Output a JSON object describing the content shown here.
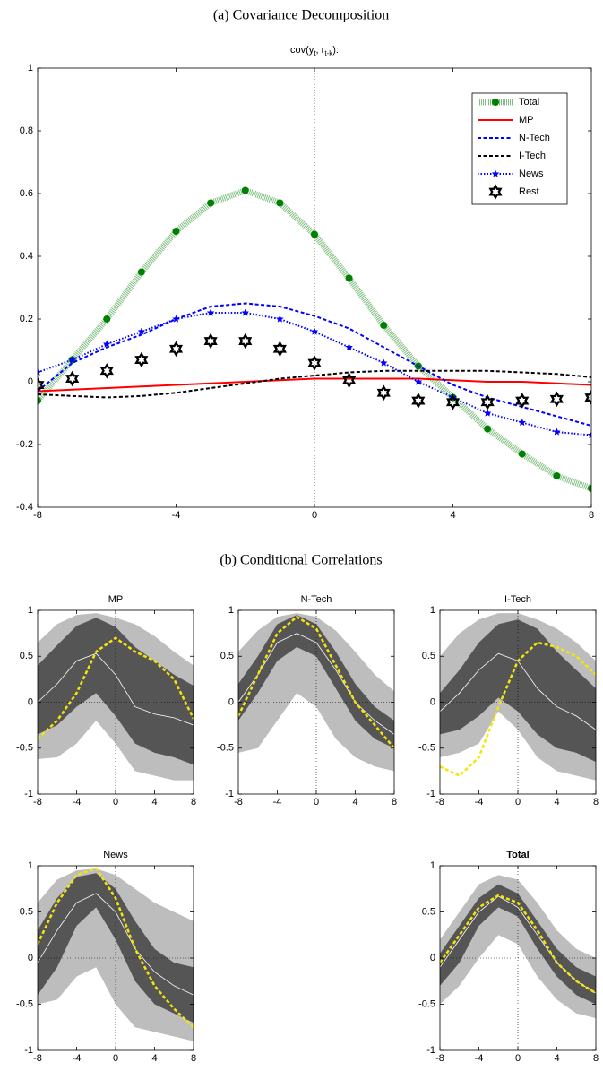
{
  "section_titles": [
    "(a) Covariance Decomposition",
    "(b) Conditional Correlations"
  ],
  "chart_data": [
    {
      "type": "line",
      "title_segments": [
        "cov(y",
        "t",
        ", r",
        "t-k",
        "):"
      ],
      "x": [
        -8,
        -7,
        -6,
        -5,
        -4,
        -3,
        -2,
        -1,
        0,
        1,
        2,
        3,
        4,
        5,
        6,
        7,
        8
      ],
      "xlim": [
        -8,
        8
      ],
      "xticks": [
        -8,
        -4,
        0,
        4,
        8
      ],
      "ylim": [
        -0.4,
        1
      ],
      "yticks": [
        -0.4,
        -0.2,
        0,
        0.2,
        0.4,
        0.6,
        0.8,
        1
      ],
      "zero_lines": [
        "x"
      ],
      "legend": "upper right",
      "series": [
        {
          "name": "Total",
          "color": "#008000",
          "line_style": "hatched",
          "marker": "circle",
          "values": [
            -0.06,
            0.07,
            0.2,
            0.35,
            0.48,
            0.57,
            0.61,
            0.57,
            0.47,
            0.33,
            0.18,
            0.05,
            -0.05,
            -0.15,
            -0.23,
            -0.3,
            -0.34
          ]
        },
        {
          "name": "MP",
          "color": "#ff0000",
          "line_style": "solid",
          "marker": "none",
          "values": [
            -0.03,
            -0.025,
            -0.02,
            -0.015,
            -0.01,
            -0.005,
            0,
            0.005,
            0.01,
            0.01,
            0.01,
            0.01,
            0.005,
            0,
            0,
            -0.005,
            -0.01
          ]
        },
        {
          "name": "N-Tech",
          "color": "#0000ff",
          "line_style": "dashed",
          "marker": "none",
          "values": [
            -0.03,
            0.06,
            0.11,
            0.15,
            0.2,
            0.24,
            0.25,
            0.24,
            0.21,
            0.17,
            0.11,
            0.05,
            -0.01,
            -0.05,
            -0.08,
            -0.11,
            -0.14
          ]
        },
        {
          "name": "I-Tech",
          "color": "#000000",
          "line_style": "dashed",
          "marker": "none",
          "values": [
            -0.04,
            -0.045,
            -0.05,
            -0.045,
            -0.035,
            -0.02,
            -0.005,
            0.01,
            0.02,
            0.03,
            0.035,
            0.035,
            0.035,
            0.035,
            0.03,
            0.025,
            0.015
          ]
        },
        {
          "name": "News",
          "color": "#0000ff",
          "line_style": "dotted",
          "marker": "star",
          "values": [
            0.03,
            0.07,
            0.12,
            0.16,
            0.2,
            0.22,
            0.22,
            0.2,
            0.16,
            0.11,
            0.06,
            0,
            -0.05,
            -0.1,
            -0.13,
            -0.16,
            -0.17
          ]
        },
        {
          "name": "Rest",
          "color": "#000000",
          "line_style": "none",
          "marker": "hexagram",
          "values": [
            -0.01,
            0.01,
            0.035,
            0.07,
            0.105,
            0.13,
            0.13,
            0.105,
            0.06,
            0.005,
            -0.035,
            -0.06,
            -0.065,
            -0.065,
            -0.06,
            -0.055,
            -0.05
          ]
        }
      ]
    },
    {
      "type": "band",
      "title": "MP",
      "x": [
        -8,
        -6,
        -4,
        -2,
        0,
        2,
        4,
        6,
        8
      ],
      "xlim": [
        -8,
        8
      ],
      "xticks": [
        -8,
        -4,
        0,
        4,
        8
      ],
      "ylim": [
        -1,
        1
      ],
      "yticks": [
        -1,
        -0.5,
        0,
        0.5,
        1
      ],
      "zero_lines": [
        "x",
        "y"
      ],
      "bands": [
        {
          "color": "#bdbdbd",
          "lower": [
            -0.62,
            -0.6,
            -0.45,
            -0.2,
            -0.45,
            -0.75,
            -0.8,
            -0.85,
            -0.85
          ],
          "upper": [
            0.65,
            0.85,
            0.95,
            0.97,
            0.92,
            0.85,
            0.72,
            0.55,
            0.4
          ]
        },
        {
          "color": "#555555",
          "lower": [
            -0.35,
            -0.25,
            -0.05,
            0.1,
            -0.15,
            -0.45,
            -0.55,
            -0.6,
            -0.68
          ],
          "upper": [
            0.4,
            0.62,
            0.83,
            0.92,
            0.82,
            0.6,
            0.45,
            0.3,
            0.18
          ]
        }
      ],
      "series": [
        {
          "color": "#ffffff",
          "line_style": "solid",
          "values": [
            0,
            0.2,
            0.45,
            0.53,
            0.3,
            -0.05,
            -0.13,
            -0.17,
            -0.25
          ]
        },
        {
          "color": "#f5e60a",
          "line_style": "dashed",
          "values": [
            -0.4,
            -0.2,
            0.1,
            0.55,
            0.7,
            0.55,
            0.45,
            0.25,
            -0.18
          ]
        }
      ]
    },
    {
      "type": "band",
      "title": "N-Tech",
      "x": [
        -8,
        -6,
        -4,
        -2,
        0,
        2,
        4,
        6,
        8
      ],
      "xlim": [
        -8,
        8
      ],
      "xticks": [
        -8,
        -4,
        0,
        4,
        8
      ],
      "ylim": [
        -1,
        1
      ],
      "yticks": [
        -1,
        -0.5,
        0,
        0.5,
        1
      ],
      "zero_lines": [
        "x",
        "y"
      ],
      "bands": [
        {
          "color": "#bdbdbd",
          "lower": [
            -0.55,
            -0.5,
            -0.2,
            0.1,
            -0.05,
            -0.4,
            -0.6,
            -0.7,
            -0.75
          ],
          "upper": [
            0.55,
            0.78,
            0.93,
            0.97,
            0.93,
            0.78,
            0.55,
            0.3,
            0.12
          ]
        },
        {
          "color": "#555555",
          "lower": [
            -0.2,
            0.1,
            0.45,
            0.6,
            0.5,
            0.15,
            -0.2,
            -0.4,
            -0.5
          ],
          "upper": [
            0.2,
            0.5,
            0.85,
            0.95,
            0.85,
            0.55,
            0.2,
            -0.05,
            -0.2
          ]
        }
      ],
      "series": [
        {
          "color": "#ffffff",
          "line_style": "solid",
          "values": [
            0,
            0.3,
            0.65,
            0.75,
            0.65,
            0.35,
            0,
            -0.2,
            -0.35
          ]
        },
        {
          "color": "#f5e60a",
          "line_style": "dashed",
          "values": [
            -0.15,
            0.3,
            0.75,
            0.93,
            0.8,
            0.4,
            0,
            -0.25,
            -0.5
          ]
        }
      ]
    },
    {
      "type": "band",
      "title": "I-Tech",
      "x": [
        -8,
        -6,
        -4,
        -2,
        0,
        2,
        4,
        6,
        8
      ],
      "xlim": [
        -8,
        8
      ],
      "xticks": [
        -8,
        -4,
        0,
        4,
        8
      ],
      "ylim": [
        -1,
        1
      ],
      "yticks": [
        -1,
        -0.5,
        0,
        0.5,
        1
      ],
      "zero_lines": [
        "x",
        "y"
      ],
      "bands": [
        {
          "color": "#bdbdbd",
          "lower": [
            -0.6,
            -0.55,
            -0.45,
            -0.1,
            -0.3,
            -0.6,
            -0.75,
            -0.8,
            -0.85
          ],
          "upper": [
            0.5,
            0.75,
            0.9,
            0.97,
            0.97,
            0.9,
            0.8,
            0.65,
            0.45
          ]
        },
        {
          "color": "#555555",
          "lower": [
            -0.35,
            -0.3,
            -0.15,
            0.05,
            -0.1,
            -0.35,
            -0.5,
            -0.55,
            -0.65
          ],
          "upper": [
            0.1,
            0.35,
            0.65,
            0.85,
            0.9,
            0.8,
            0.55,
            0.35,
            0.15
          ]
        }
      ],
      "series": [
        {
          "color": "#ffffff",
          "line_style": "solid",
          "values": [
            -0.1,
            0.1,
            0.35,
            0.53,
            0.45,
            0.15,
            -0.05,
            -0.15,
            -0.3
          ]
        },
        {
          "color": "#f5e60a",
          "line_style": "dashed",
          "values": [
            -0.7,
            -0.8,
            -0.6,
            -0.05,
            0.45,
            0.65,
            0.6,
            0.5,
            0.3
          ]
        }
      ]
    },
    {
      "type": "band",
      "title": "News",
      "x": [
        -8,
        -6,
        -4,
        -2,
        0,
        2,
        4,
        6,
        8
      ],
      "xlim": [
        -8,
        8
      ],
      "xticks": [
        -8,
        -4,
        0,
        4,
        8
      ],
      "ylim": [
        -1,
        1
      ],
      "yticks": [
        -1,
        -0.5,
        0,
        0.5,
        1
      ],
      "zero_lines": [
        "x",
        "y"
      ],
      "bands": [
        {
          "color": "#bdbdbd",
          "lower": [
            -0.5,
            -0.45,
            -0.2,
            -0.1,
            -0.5,
            -0.75,
            -0.8,
            -0.85,
            -0.9
          ],
          "upper": [
            0.6,
            0.85,
            0.95,
            0.97,
            0.9,
            0.75,
            0.6,
            0.5,
            0.4
          ]
        },
        {
          "color": "#555555",
          "lower": [
            -0.4,
            -0.1,
            0.35,
            0.55,
            0.2,
            -0.25,
            -0.5,
            -0.6,
            -0.7
          ],
          "upper": [
            0.3,
            0.65,
            0.88,
            0.92,
            0.75,
            0.4,
            0.1,
            -0.05,
            -0.1
          ]
        }
      ],
      "series": [
        {
          "color": "#ffffff",
          "line_style": "solid",
          "values": [
            -0.05,
            0.3,
            0.6,
            0.7,
            0.5,
            0.1,
            -0.15,
            -0.3,
            -0.4
          ]
        },
        {
          "color": "#f5e60a",
          "line_style": "dashed",
          "values": [
            0.15,
            0.6,
            0.9,
            0.97,
            0.65,
            0.1,
            -0.3,
            -0.55,
            -0.75
          ]
        }
      ]
    },
    {
      "type": "band",
      "title": "Total",
      "title_weight": "bold",
      "x": [
        -8,
        -6,
        -4,
        -2,
        0,
        2,
        4,
        6,
        8
      ],
      "xlim": [
        -8,
        8
      ],
      "xticks": [
        -8,
        -4,
        0,
        4,
        8
      ],
      "ylim": [
        -1,
        1
      ],
      "yticks": [
        -1,
        -0.5,
        0,
        0.5,
        1
      ],
      "zero_lines": [
        "x",
        "y"
      ],
      "bands": [
        {
          "color": "#bdbdbd",
          "lower": [
            -0.5,
            -0.3,
            0,
            0.25,
            0.15,
            -0.2,
            -0.45,
            -0.6,
            -0.65
          ],
          "upper": [
            0.2,
            0.5,
            0.8,
            0.9,
            0.85,
            0.6,
            0.3,
            0.1,
            0
          ]
        },
        {
          "color": "#555555",
          "lower": [
            -0.3,
            -0.05,
            0.35,
            0.55,
            0.45,
            0.1,
            -0.2,
            -0.4,
            -0.5
          ],
          "upper": [
            0.05,
            0.35,
            0.65,
            0.8,
            0.7,
            0.4,
            0.1,
            -0.1,
            -0.2
          ]
        }
      ],
      "series": [
        {
          "color": "#ffffff",
          "line_style": "solid",
          "values": [
            -0.1,
            0.2,
            0.5,
            0.67,
            0.55,
            0.25,
            -0.05,
            -0.25,
            -0.38
          ]
        },
        {
          "color": "#f5e60a",
          "line_style": "dashed",
          "values": [
            -0.05,
            0.25,
            0.55,
            0.68,
            0.6,
            0.3,
            -0.05,
            -0.25,
            -0.38
          ]
        }
      ]
    }
  ]
}
